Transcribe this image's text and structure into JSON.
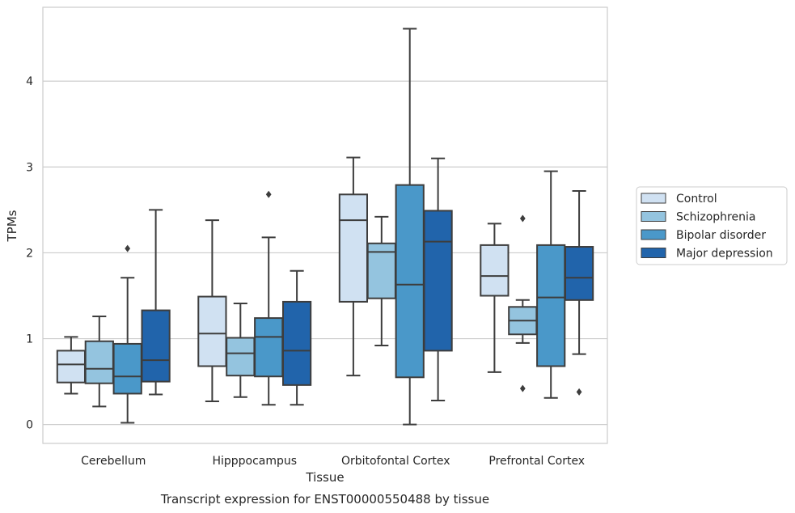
{
  "caption": "Transcript expression for ENST00000550488 by tissue",
  "chart_data": {
    "type": "box",
    "xlabel": "Tissue",
    "ylabel": "TPMs",
    "ylim": [
      -0.22,
      4.86
    ],
    "yticks": [
      0,
      1,
      2,
      3,
      4
    ],
    "grid": "horizontal",
    "legend_position": "right",
    "categories": [
      "Cerebellum",
      "Hipppocampus",
      "Orbitofontal Cortex",
      "Prefrontal Cortex"
    ],
    "series": [
      {
        "name": "Control",
        "color": "#d0e1f2",
        "boxes": [
          {
            "whisker_low": 0.36,
            "q1": 0.49,
            "median": 0.7,
            "q3": 0.86,
            "whisker_high": 1.02,
            "outliers": []
          },
          {
            "whisker_low": 0.27,
            "q1": 0.68,
            "median": 1.06,
            "q3": 1.49,
            "whisker_high": 2.38,
            "outliers": []
          },
          {
            "whisker_low": 0.57,
            "q1": 1.43,
            "median": 2.38,
            "q3": 2.68,
            "whisker_high": 3.11,
            "outliers": []
          },
          {
            "whisker_low": 0.61,
            "q1": 1.5,
            "median": 1.73,
            "q3": 2.09,
            "whisker_high": 2.34,
            "outliers": []
          }
        ]
      },
      {
        "name": "Schizophrenia",
        "color": "#94c4df",
        "boxes": [
          {
            "whisker_low": 0.21,
            "q1": 0.48,
            "median": 0.65,
            "q3": 0.97,
            "whisker_high": 1.26,
            "outliers": []
          },
          {
            "whisker_low": 0.32,
            "q1": 0.57,
            "median": 0.83,
            "q3": 1.01,
            "whisker_high": 1.41,
            "outliers": []
          },
          {
            "whisker_low": 0.92,
            "q1": 1.47,
            "median": 2.01,
            "q3": 2.11,
            "whisker_high": 2.42,
            "outliers": []
          },
          {
            "whisker_low": 0.95,
            "q1": 1.05,
            "median": 1.21,
            "q3": 1.37,
            "whisker_high": 1.45,
            "outliers": [
              2.4,
              0.42
            ]
          }
        ]
      },
      {
        "name": "Bipolar disorder",
        "color": "#4a98c9",
        "boxes": [
          {
            "whisker_low": 0.02,
            "q1": 0.36,
            "median": 0.56,
            "q3": 0.94,
            "whisker_high": 1.71,
            "outliers": [
              2.05
            ]
          },
          {
            "whisker_low": 0.23,
            "q1": 0.56,
            "median": 1.02,
            "q3": 1.24,
            "whisker_high": 2.18,
            "outliers": [
              2.68
            ]
          },
          {
            "whisker_low": 0.0,
            "q1": 0.55,
            "median": 1.63,
            "q3": 2.79,
            "whisker_high": 4.61,
            "outliers": []
          },
          {
            "whisker_low": 0.31,
            "q1": 0.68,
            "median": 1.48,
            "q3": 2.09,
            "whisker_high": 2.95,
            "outliers": []
          }
        ]
      },
      {
        "name": "Major depression",
        "color": "#2164ab",
        "boxes": [
          {
            "whisker_low": 0.35,
            "q1": 0.5,
            "median": 0.75,
            "q3": 1.33,
            "whisker_high": 2.5,
            "outliers": []
          },
          {
            "whisker_low": 0.23,
            "q1": 0.46,
            "median": 0.86,
            "q3": 1.43,
            "whisker_high": 1.79,
            "outliers": []
          },
          {
            "whisker_low": 0.28,
            "q1": 0.86,
            "median": 2.13,
            "q3": 2.49,
            "whisker_high": 3.1,
            "outliers": []
          },
          {
            "whisker_low": 0.82,
            "q1": 1.45,
            "median": 1.71,
            "q3": 2.07,
            "whisker_high": 2.72,
            "outliers": [
              0.38
            ]
          }
        ]
      }
    ]
  }
}
